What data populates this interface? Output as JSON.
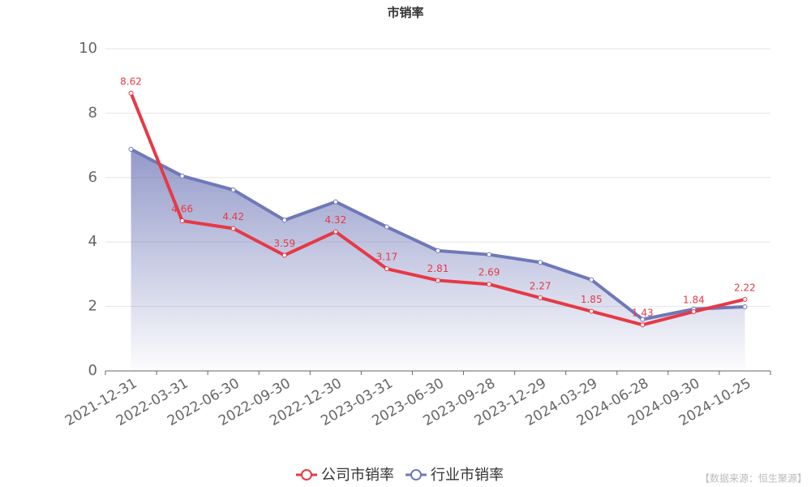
{
  "chart_data": {
    "type": "line",
    "title": "市销率",
    "categories": [
      "2021-12-31",
      "2022-03-31",
      "2022-06-30",
      "2022-09-30",
      "2022-12-30",
      "2023-03-31",
      "2023-06-30",
      "2023-09-28",
      "2023-12-29",
      "2024-03-29",
      "2024-06-28",
      "2024-09-30",
      "2024-10-25"
    ],
    "series": [
      {
        "name": "公司市销率",
        "color": "#e63946",
        "values": [
          8.62,
          4.66,
          4.42,
          3.59,
          4.32,
          3.17,
          2.81,
          2.69,
          2.27,
          1.85,
          1.43,
          1.84,
          2.22
        ],
        "data_labels": true
      },
      {
        "name": "行业市销率",
        "color": "#6f78b8",
        "values": [
          6.88,
          6.05,
          5.62,
          4.68,
          5.25,
          4.47,
          3.73,
          3.61,
          3.37,
          2.83,
          1.6,
          1.92,
          1.99
        ],
        "area": true
      }
    ],
    "ylim": [
      0,
      10
    ],
    "yticks": [
      0,
      2,
      4,
      6,
      8,
      10
    ],
    "grid": true,
    "legend": "bottom",
    "source": "【数据来源：恒生聚源】"
  }
}
